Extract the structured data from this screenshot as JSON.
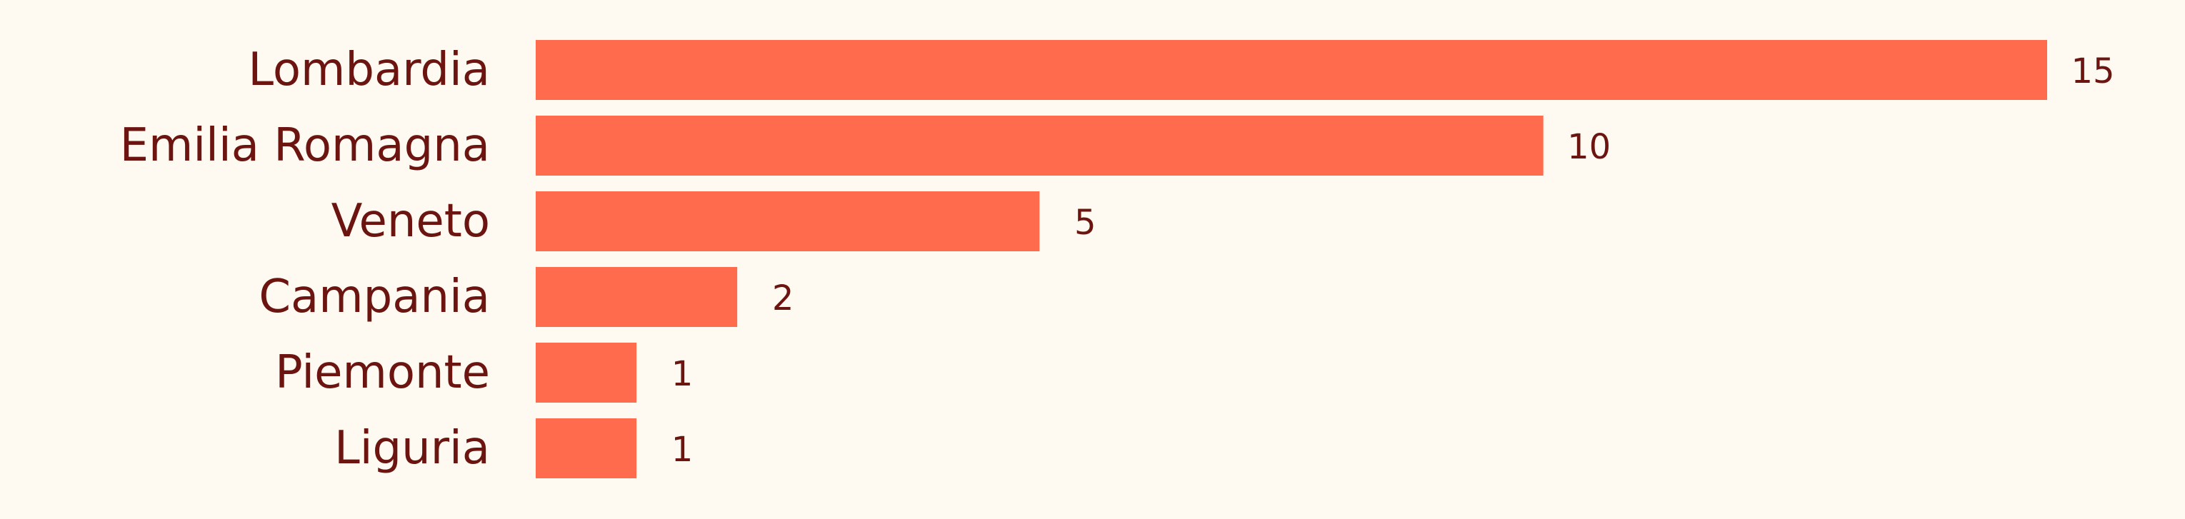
{
  "chart_data": {
    "type": "bar",
    "orientation": "horizontal",
    "categories": [
      "Lombardia",
      "Emilia Romagna",
      "Veneto",
      "Campania",
      "Piemonte",
      "Liguria"
    ],
    "values": [
      15,
      10,
      5,
      2,
      1,
      1
    ],
    "title": "",
    "xlabel": "",
    "ylabel": "",
    "xlim": [
      0,
      15
    ],
    "grid": false,
    "legend": "none",
    "data_labels": true,
    "colors": {
      "bar": "#FF6B4D",
      "text": "#6B1410",
      "background": "#FEF9F1"
    }
  }
}
